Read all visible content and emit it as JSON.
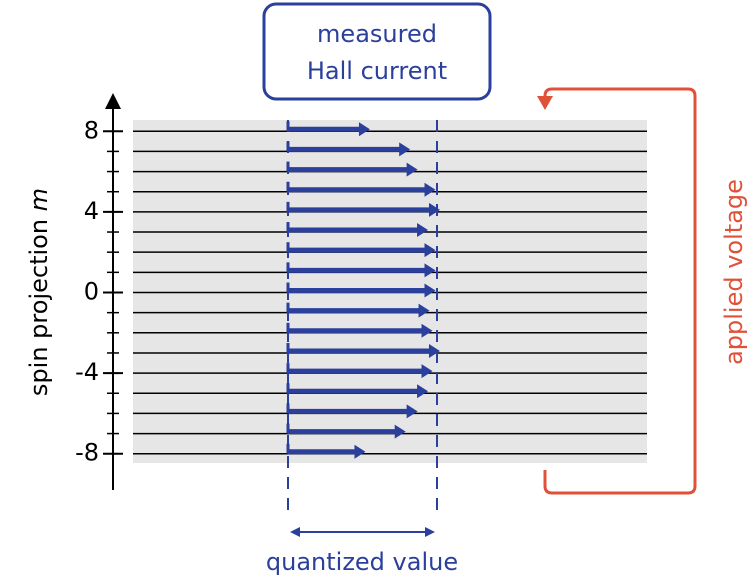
{
  "chart_data": {
    "type": "bar",
    "orientation": "horizontal",
    "box_label": [
      "measured",
      "Hall current"
    ],
    "ylabel": {
      "text": "spin projection",
      "variable": "m"
    },
    "side_label": "applied voltage",
    "bottom_label": "quantized value",
    "categories": [
      8,
      7,
      6,
      5,
      4,
      3,
      2,
      1,
      0,
      -1,
      -2,
      -3,
      -4,
      -5,
      -6,
      -7,
      -8
    ],
    "values": [
      0.55,
      0.82,
      0.87,
      0.99,
      1.02,
      0.94,
      0.99,
      0.99,
      0.99,
      0.95,
      0.97,
      1.02,
      0.97,
      0.94,
      0.87,
      0.79,
      0.52
    ],
    "color": "#2b3f9c",
    "accent": "#e0513a",
    "ylim": [
      -9.8,
      9.7
    ],
    "yticks": [
      -8,
      -4,
      0,
      4,
      8
    ]
  }
}
